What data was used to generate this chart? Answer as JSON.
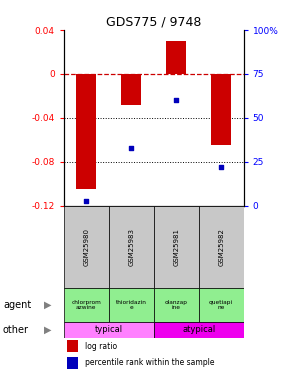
{
  "title": "GDS775 / 9748",
  "samples": [
    "GSM25980",
    "GSM25983",
    "GSM25981",
    "GSM25982"
  ],
  "log_ratios": [
    -0.105,
    -0.028,
    0.03,
    -0.065
  ],
  "percentile_ranks": [
    3,
    33,
    60,
    22
  ],
  "ylim_left": [
    -0.12,
    0.04
  ],
  "ylim_right": [
    0,
    100
  ],
  "left_ticks": [
    0.04,
    0,
    -0.04,
    -0.08,
    -0.12
  ],
  "right_ticks": [
    100,
    75,
    50,
    25,
    0
  ],
  "right_tick_labels": [
    "100%",
    "75",
    "50",
    "25",
    "0"
  ],
  "left_tick_labels": [
    "0.04",
    "0",
    "-0.04",
    "-0.08",
    "-0.12"
  ],
  "agent_labels": [
    "chlorprom\nazwine",
    "thioridazin\ne",
    "olanzap\nine",
    "quetiapi\nne"
  ],
  "gray_color": "#C8C8C8",
  "green_color": "#90EE90",
  "typical_color": "#FF80FF",
  "atypical_color": "#EE00EE",
  "bar_color": "#CC0000",
  "dot_color": "#0000BB",
  "legend_red_label": "log ratio",
  "legend_blue_label": "percentile rank within the sample"
}
